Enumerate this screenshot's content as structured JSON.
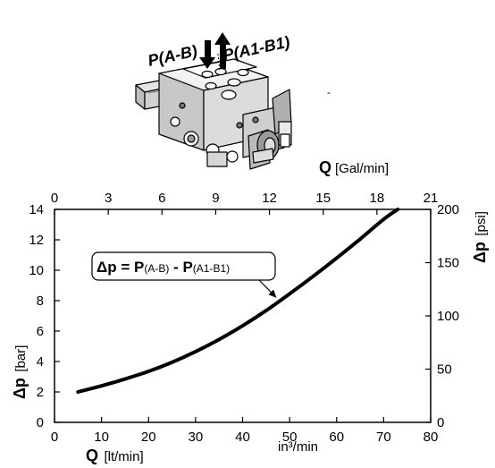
{
  "diagram": {
    "label_inlet": "P(A-B)",
    "label_outlet": "P(A1-B1)"
  },
  "chart_data": {
    "type": "line",
    "title": "",
    "xlabel": {
      "symbol": "Q",
      "unit": "[lt/min]"
    },
    "ylabel": {
      "symbol": "Δp",
      "unit": "[bar]"
    },
    "x2label": {
      "symbol": "Q",
      "unit": "[Gal/min]"
    },
    "y2label": {
      "symbol": "Δp",
      "unit": "[psi]"
    },
    "unit_note": "in³/min",
    "xlim": [
      0,
      80
    ],
    "ylim": [
      0,
      14
    ],
    "x2lim": [
      0,
      21
    ],
    "y2lim": [
      0,
      200
    ],
    "xticks": [
      0,
      10,
      20,
      30,
      40,
      50,
      60,
      70,
      80
    ],
    "yticks": [
      0,
      2,
      4,
      6,
      8,
      10,
      12,
      14
    ],
    "x2ticks": [
      0,
      3,
      6,
      9,
      12,
      15,
      18,
      21
    ],
    "y2ticks": [
      0,
      50,
      100,
      150,
      200
    ],
    "grid": false,
    "series": [
      {
        "x": [
          5,
          10,
          15,
          20,
          25,
          30,
          35,
          40,
          45,
          50,
          55,
          60,
          65,
          70,
          73
        ],
        "y": [
          2.0,
          2.4,
          2.85,
          3.35,
          3.95,
          4.65,
          5.45,
          6.35,
          7.35,
          8.45,
          9.6,
          10.8,
          12.05,
          13.35,
          14.0
        ]
      }
    ],
    "annotation": {
      "prefix": "Δp = ",
      "p1": "P",
      "p1_sub": "(A-B)",
      "minus": " - ",
      "p2": "P",
      "p2_sub": "(A1-B1)",
      "points_to_x": 48
    }
  }
}
